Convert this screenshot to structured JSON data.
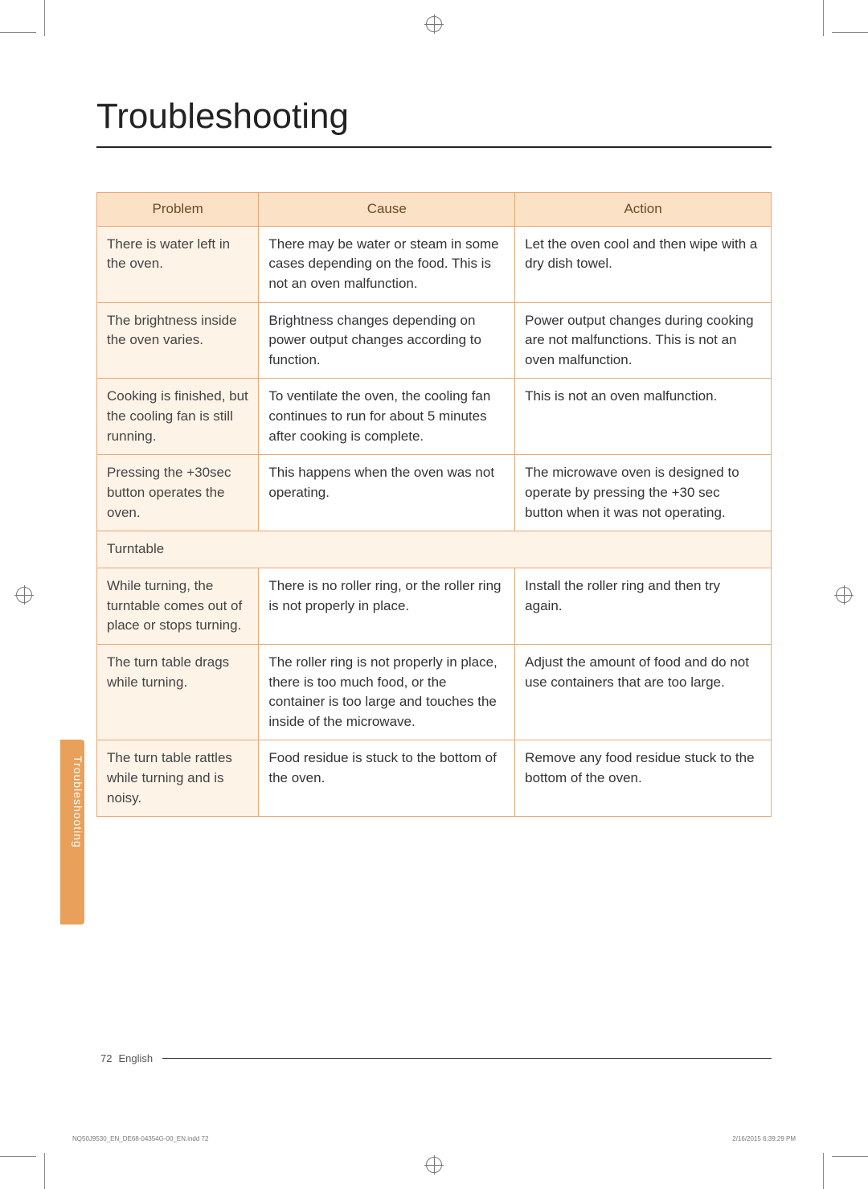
{
  "title": "Troubleshooting",
  "side_tab": "Troubleshooting",
  "columns": {
    "problem": "Problem",
    "cause": "Cause",
    "action": "Action"
  },
  "rows": [
    {
      "problem": "There is water left in the oven.",
      "cause": "There may be water or steam in some cases depending on the food.\nThis is not an oven malfunction.",
      "action": "Let the oven cool and then wipe with a dry dish towel."
    },
    {
      "problem": "The brightness inside the oven varies.",
      "cause": "Brightness changes depending on power output changes according to function.",
      "action": "Power output changes during cooking are not malfunctions. This is not an oven malfunction."
    },
    {
      "problem": "Cooking is finished, but the cooling fan is still running.",
      "cause": "To ventilate the oven, the cooling fan continues to run for about 5 minutes after cooking is complete.",
      "action": "This is not an oven malfunction."
    },
    {
      "problem": "Pressing the +30sec button operates the oven.",
      "cause": "This happens when the oven was not operating.",
      "action": "The microwave oven is designed to operate by pressing the +30 sec button when it was not operating."
    }
  ],
  "section": "Turntable",
  "rows2": [
    {
      "problem": "While turning, the turntable comes out of place or stops turning.",
      "cause": "There is no roller ring, or the roller ring is not properly in place.",
      "action": "Install the roller ring and then try again."
    },
    {
      "problem": "The turn table drags while turning.",
      "cause": "The roller ring is not properly in place, there is too much food, or the container is too large and touches the inside of the microwave.",
      "action": "Adjust the amount of food and do not use containers that are too large."
    },
    {
      "problem": "The turn table rattles while turning and is noisy.",
      "cause": "Food residue is stuck to the bottom of the oven.",
      "action": "Remove any food residue stuck to the bottom of the oven."
    }
  ],
  "footer": {
    "page": "72",
    "lang": "English"
  },
  "print": {
    "left": "NQ50J9530_EN_DE68-04354G-00_EN.indd   72",
    "right": "2/16/2015   6:39:29 PM"
  },
  "colors": {
    "header_bg": "#fbe2c6",
    "problem_bg": "#fdf3e7",
    "border": "#e8a876",
    "tab": "#e8a05a"
  }
}
